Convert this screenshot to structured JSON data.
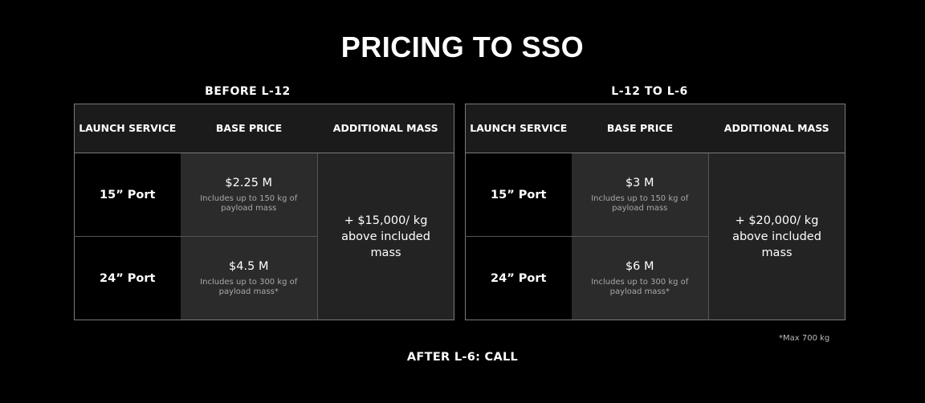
{
  "title": "PRICING TO SSO",
  "headers": {
    "launch_service": "LAUNCH SERVICE",
    "base_price": "BASE PRICE",
    "additional_mass": "ADDITIONAL MASS"
  },
  "tables": [
    {
      "section_title": "BEFORE L-12",
      "rows": [
        {
          "service": "15” Port",
          "price": "$2.25 M",
          "note": "Includes up to 150 kg of payload mass"
        },
        {
          "service": "24” Port",
          "price": "$4.5 M",
          "note": "Includes up to 300 kg of payload mass*"
        }
      ],
      "additional": "+ $15,000/ kg above included mass"
    },
    {
      "section_title": "L-12 TO L-6",
      "rows": [
        {
          "service": "15” Port",
          "price": "$3 M",
          "note": "Includes up to 150 kg of payload mass"
        },
        {
          "service": "24” Port",
          "price": "$6 M",
          "note": "Includes up to 300 kg of payload mass*"
        }
      ],
      "additional": "+ $20,000/ kg above included mass"
    }
  ],
  "footnote": "*Max 700 kg",
  "after": "AFTER L-6: CALL"
}
